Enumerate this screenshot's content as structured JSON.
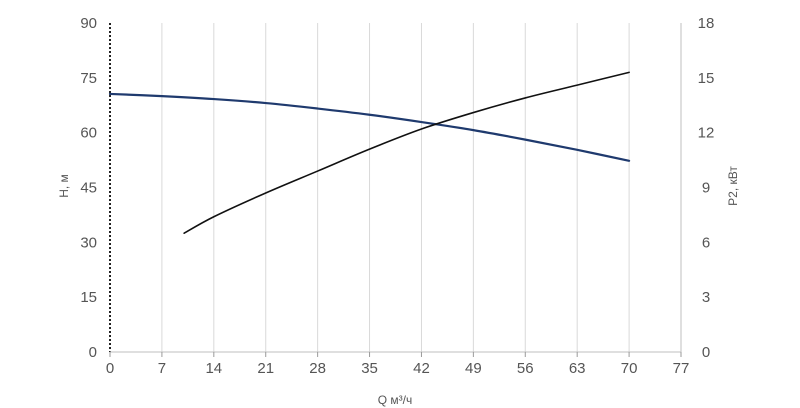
{
  "chart_data": {
    "type": "line",
    "xlabel": "Q м³/ч",
    "ylabel_left": "H, м",
    "ylabel_right": "P2, кВт",
    "x_ticks": [
      "0",
      "7",
      "14",
      "21",
      "28",
      "35",
      "42",
      "49",
      "56",
      "63",
      "70",
      "77"
    ],
    "y_left_ticks": [
      "0",
      "15",
      "30",
      "45",
      "60",
      "75",
      "90"
    ],
    "y_right_ticks": [
      "0",
      "3",
      "6",
      "9",
      "12",
      "15",
      "18"
    ],
    "xlim": [
      0,
      77
    ],
    "ylim_left": [
      0,
      90
    ],
    "ylim_right": [
      0,
      18
    ],
    "grid": true,
    "series": [
      {
        "axis": "left",
        "color": "#1f3a6e",
        "x": [
          0,
          7,
          14,
          21,
          28,
          35,
          42,
          49,
          56,
          63,
          70
        ],
        "y": [
          70.6,
          70.0,
          69.2,
          68.1,
          66.6,
          64.9,
          62.9,
          60.7,
          58.1,
          55.3,
          52.3
        ]
      },
      {
        "axis": "right",
        "color": "#111111",
        "x": [
          10,
          14,
          21,
          28,
          35,
          42,
          49,
          56,
          63,
          70
        ],
        "y": [
          6.5,
          7.4,
          8.7,
          9.9,
          11.1,
          12.2,
          13.1,
          13.9,
          14.6,
          15.3
        ]
      }
    ]
  }
}
